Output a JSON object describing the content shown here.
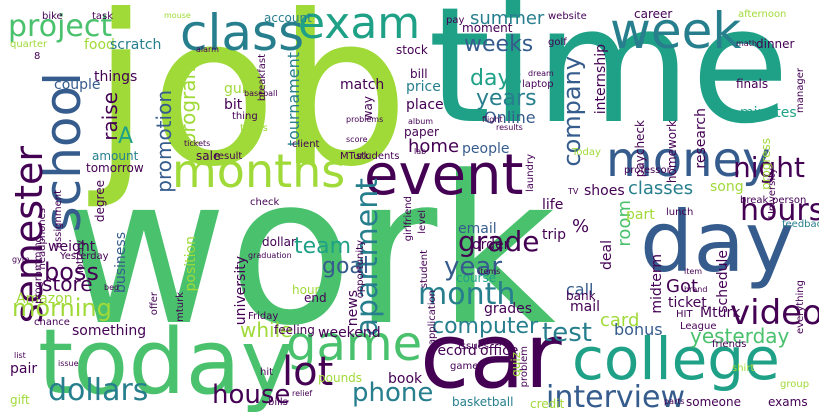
{
  "palette": {
    "dark_purple": "#440154",
    "indigo": "#46327e",
    "blue": "#365c8d",
    "teal_blue": "#277f8e",
    "teal": "#1fa187",
    "green": "#4ac16d",
    "lime": "#a0da39",
    "yellow": "#fde725"
  },
  "words": [
    {
      "text": "work",
      "color": "#4ac16d"
    },
    {
      "text": "job",
      "color": "#a0da39"
    },
    {
      "text": "time",
      "color": "#1fa187"
    },
    {
      "text": "today",
      "color": "#4ac16d"
    },
    {
      "text": "car",
      "color": "#440154"
    },
    {
      "text": "day",
      "color": "#365c8d"
    },
    {
      "text": "college",
      "color": "#1fa187"
    },
    {
      "text": "event",
      "color": "#440154"
    },
    {
      "text": "money",
      "color": "#365c8d"
    },
    {
      "text": "school",
      "color": "#365c8d"
    },
    {
      "text": "class",
      "color": "#277f8e"
    },
    {
      "text": "exam",
      "color": "#1fa187"
    },
    {
      "text": "week",
      "color": "#277f8e"
    },
    {
      "text": "months",
      "color": "#a0da39"
    },
    {
      "text": "game",
      "color": "#4ac16d"
    },
    {
      "text": "semester",
      "color": "#440154"
    },
    {
      "text": "project",
      "color": "#4ac16d"
    },
    {
      "text": "night",
      "color": "#440154"
    },
    {
      "text": "hours",
      "color": "#440154"
    },
    {
      "text": "lot",
      "color": "#440154"
    },
    {
      "text": "video",
      "color": "#440154"
    },
    {
      "text": "month",
      "color": "#277f8e"
    },
    {
      "text": "apartment",
      "color": "#277f8e"
    },
    {
      "text": "interview",
      "color": "#365c8d"
    },
    {
      "text": "dollars",
      "color": "#277f8e"
    },
    {
      "text": "house",
      "color": "#440154"
    },
    {
      "text": "phone",
      "color": "#277f8e"
    },
    {
      "text": "morning",
      "color": "#a0da39"
    },
    {
      "text": "boss",
      "color": "#440154"
    },
    {
      "text": "computer",
      "color": "#277f8e"
    },
    {
      "text": "test",
      "color": "#277f8e"
    },
    {
      "text": "yesterday",
      "color": "#4ac16d"
    },
    {
      "text": "weeks",
      "color": "#365c8d"
    },
    {
      "text": "years",
      "color": "#277f8e"
    },
    {
      "text": "company",
      "color": "#365c8d"
    },
    {
      "text": "grade",
      "color": "#440154"
    },
    {
      "text": "year",
      "color": "#365c8d"
    },
    {
      "text": "days",
      "color": "#1fa187"
    },
    {
      "text": "summer",
      "color": "#277f8e"
    },
    {
      "text": "team",
      "color": "#1fa187"
    },
    {
      "text": "goal",
      "color": "#365c8d"
    },
    {
      "text": "store",
      "color": "#440154"
    },
    {
      "text": "program",
      "color": "#a0da39"
    },
    {
      "text": "promotion",
      "color": "#365c8d"
    },
    {
      "text": "raise",
      "color": "#440154"
    },
    {
      "text": "classes",
      "color": "#277f8e"
    },
    {
      "text": "room",
      "color": "#4ac16d"
    },
    {
      "text": "Got",
      "color": "#440154"
    },
    {
      "text": "card",
      "color": "#a0da39"
    },
    {
      "text": "bonus",
      "color": "#365c8d"
    },
    {
      "text": "while",
      "color": "#a0da39"
    },
    {
      "text": "tournament",
      "color": "#277f8e"
    },
    {
      "text": "A",
      "color": "#1fa187"
    },
    {
      "text": "home",
      "color": "#440154"
    },
    {
      "text": "Online",
      "color": "#365c8d"
    },
    {
      "text": "things",
      "color": "#440154"
    },
    {
      "text": "food",
      "color": "#a0da39"
    },
    {
      "text": "scratch",
      "color": "#277f8e"
    },
    {
      "text": "couple",
      "color": "#365c8d"
    },
    {
      "text": "stock",
      "color": "#440154"
    },
    {
      "text": "guitar",
      "color": "#a0da39"
    },
    {
      "text": "bit",
      "color": "#440154"
    },
    {
      "text": "match",
      "color": "#440154"
    },
    {
      "text": "bill",
      "color": "#440154"
    },
    {
      "text": "price",
      "color": "#277f8e"
    },
    {
      "text": "place",
      "color": "#440154"
    },
    {
      "text": "paper",
      "color": "#440154"
    },
    {
      "text": "people",
      "color": "#365c8d"
    },
    {
      "text": "life",
      "color": "#440154"
    },
    {
      "text": "trip",
      "color": "#440154"
    },
    {
      "text": "order",
      "color": "#440154"
    },
    {
      "text": "email",
      "color": "#365c8d"
    },
    {
      "text": "course",
      "color": "#1fa187"
    },
    {
      "text": "grades",
      "color": "#440154"
    },
    {
      "text": "call",
      "color": "#365c8d"
    },
    {
      "text": "mail",
      "color": "#440154"
    },
    {
      "text": "bank",
      "color": "#440154"
    },
    {
      "text": "deal",
      "color": "#440154"
    },
    {
      "text": "shoes",
      "color": "#440154"
    },
    {
      "text": "part",
      "color": "#a0da39"
    },
    {
      "text": "ticket",
      "color": "#440154"
    },
    {
      "text": "Mturk",
      "color": "#440154"
    },
    {
      "text": "song",
      "color": "#a0da39"
    },
    {
      "text": "minutes",
      "color": "#1fa187"
    },
    {
      "text": "schedule",
      "color": "#440154"
    },
    {
      "text": "midterm",
      "color": "#440154"
    },
    {
      "text": "research",
      "color": "#440154"
    },
    {
      "text": "homework",
      "color": "#440154"
    },
    {
      "text": "paycheck",
      "color": "#440154"
    },
    {
      "text": "internship",
      "color": "#440154"
    },
    {
      "text": "career",
      "color": "#440154"
    },
    {
      "text": "dinner",
      "color": "#440154"
    },
    {
      "text": "finals",
      "color": "#440154"
    },
    {
      "text": "weight",
      "color": "#440154"
    },
    {
      "text": "amount",
      "color": "#277f8e"
    },
    {
      "text": "tomorrow",
      "color": "#440154"
    },
    {
      "text": "sale",
      "color": "#440154"
    },
    {
      "text": "result",
      "color": "#440154"
    },
    {
      "text": "client",
      "color": "#440154"
    },
    {
      "text": "business",
      "color": "#365c8d"
    },
    {
      "text": "position",
      "color": "#a0da39"
    },
    {
      "text": "university",
      "color": "#440154"
    },
    {
      "text": "hour",
      "color": "#a0da39"
    },
    {
      "text": "end",
      "color": "#440154"
    },
    {
      "text": "dollar",
      "color": "#440154"
    },
    {
      "text": "news",
      "color": "#440154"
    },
    {
      "text": "office",
      "color": "#440154"
    },
    {
      "text": "record",
      "color": "#440154"
    },
    {
      "text": "Amazon",
      "color": "#a0da39"
    },
    {
      "text": "something",
      "color": "#440154"
    },
    {
      "text": "weekend",
      "color": "#440154"
    },
    {
      "text": "feeling",
      "color": "#440154"
    },
    {
      "text": "pounds",
      "color": "#a0da39"
    },
    {
      "text": "book",
      "color": "#440154"
    },
    {
      "text": "basketball",
      "color": "#277f8e"
    },
    {
      "text": "credit",
      "color": "#a0da39"
    },
    {
      "text": "someone",
      "color": "#440154"
    },
    {
      "text": "exams",
      "color": "#440154"
    },
    {
      "text": "pair",
      "color": "#440154"
    },
    {
      "text": "gift",
      "color": "#a0da39"
    },
    {
      "text": "bills",
      "color": "#440154"
    },
    {
      "text": "games",
      "color": "#440154"
    },
    {
      "text": "issues",
      "color": "#440154"
    },
    {
      "text": "quiz",
      "color": "#a0da39"
    },
    {
      "text": "problem",
      "color": "#440154"
    },
    {
      "text": "friends",
      "color": "#440154"
    },
    {
      "text": "League",
      "color": "#440154"
    },
    {
      "text": "shirt",
      "color": "#a0da39"
    },
    {
      "text": "group",
      "color": "#a0da39"
    },
    {
      "text": "feedback",
      "color": "#277f8e"
    },
    {
      "text": "progress",
      "color": "#a0da39"
    },
    {
      "text": "University",
      "color": "#440154"
    },
    {
      "text": "manager",
      "color": "#440154"
    },
    {
      "text": "afternoon",
      "color": "#a0da39"
    },
    {
      "text": "website",
      "color": "#440154"
    },
    {
      "text": "pay",
      "color": "#440154"
    },
    {
      "text": "golf",
      "color": "#440154"
    },
    {
      "text": "laptop",
      "color": "#440154"
    },
    {
      "text": "moment",
      "color": "#440154"
    },
    {
      "text": "account",
      "color": "#277f8e"
    },
    {
      "text": "task",
      "color": "#440154"
    },
    {
      "text": "mouse",
      "color": "#a0da39"
    },
    {
      "text": "bike",
      "color": "#440154"
    },
    {
      "text": "quarter",
      "color": "#a0da39"
    },
    {
      "text": "breakfast",
      "color": "#440154"
    },
    {
      "text": "alarm",
      "color": "#440154"
    },
    {
      "text": "Today",
      "color": "#a0da39"
    },
    {
      "text": "students",
      "color": "#440154"
    },
    {
      "text": "MTurk",
      "color": "#440154"
    },
    {
      "text": "lab",
      "color": "#440154"
    },
    {
      "text": "laundry",
      "color": "#440154"
    },
    {
      "text": "professor",
      "color": "#440154"
    },
    {
      "text": "break",
      "color": "#440154"
    },
    {
      "text": "person",
      "color": "#440154"
    },
    {
      "text": "TV",
      "color": "#440154"
    },
    {
      "text": "lunch",
      "color": "#440154"
    },
    {
      "text": "student",
      "color": "#440154"
    },
    {
      "text": "application",
      "color": "#440154"
    },
    {
      "text": "opportunity",
      "color": "#440154"
    },
    {
      "text": "level",
      "color": "#440154"
    },
    {
      "text": "girlfriend",
      "color": "#440154"
    },
    {
      "text": "assignment",
      "color": "#440154"
    },
    {
      "text": "programming",
      "color": "#440154"
    },
    {
      "text": "lottery",
      "color": "#440154"
    },
    {
      "text": "headphones",
      "color": "#440154"
    },
    {
      "text": "Yesterday",
      "color": "#440154"
    },
    {
      "text": "check",
      "color": "#440154"
    },
    {
      "text": "graduation",
      "color": "#440154"
    },
    {
      "text": "Friday",
      "color": "#440154"
    },
    {
      "text": "offer",
      "color": "#440154"
    },
    {
      "text": "mturk",
      "color": "#440154"
    },
    {
      "text": "chance",
      "color": "#440154"
    },
    {
      "text": "hit",
      "color": "#440154"
    },
    {
      "text": "relief",
      "color": "#440154"
    },
    {
      "text": "issue",
      "color": "#440154"
    },
    {
      "text": "list",
      "color": "#440154"
    },
    {
      "text": "gym",
      "color": "#440154"
    },
    {
      "text": "bed",
      "color": "#440154"
    },
    {
      "text": "degree",
      "color": "#440154"
    },
    {
      "text": "tickets",
      "color": "#440154"
    },
    {
      "text": "thing",
      "color": "#440154"
    },
    {
      "text": "times",
      "color": "#a0da39"
    },
    {
      "text": "baseball",
      "color": "#440154"
    },
    {
      "text": "problems",
      "color": "#440154"
    },
    {
      "text": "score",
      "color": "#440154"
    },
    {
      "text": "flight",
      "color": "#440154"
    },
    {
      "text": "results",
      "color": "#440154"
    },
    {
      "text": "dream",
      "color": "#440154"
    },
    {
      "text": "album",
      "color": "#440154"
    },
    {
      "text": "way",
      "color": "#440154"
    },
    {
      "text": "math",
      "color": "#440154"
    },
    {
      "text": "everything",
      "color": "#440154"
    },
    {
      "text": "brand",
      "color": "#440154"
    },
    {
      "text": "HIT",
      "color": "#440154"
    },
    {
      "text": "item",
      "color": "#440154"
    },
    {
      "text": "items",
      "color": "#440154"
    },
    {
      "text": "parts",
      "color": "#440154"
    },
    {
      "text": "8",
      "color": "#440154"
    },
    {
      "text": "%",
      "color": "#440154"
    }
  ]
}
